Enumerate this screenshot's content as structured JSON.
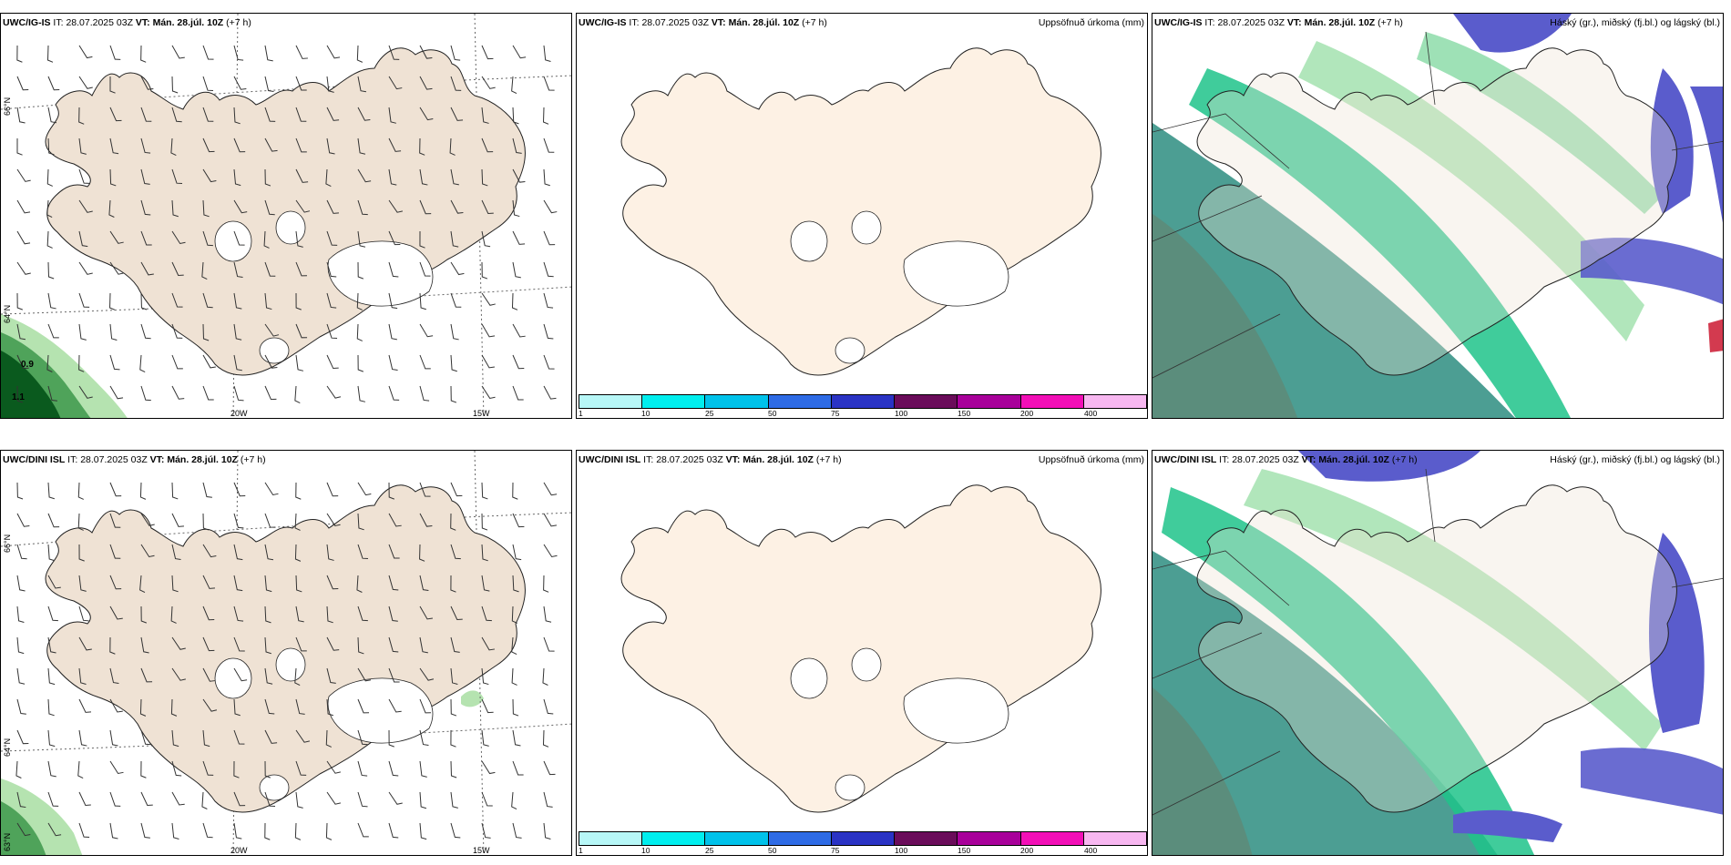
{
  "rows": [
    {
      "model": "UWC/IG-IS",
      "it_label": "IT:",
      "it_value": "28.07.2025 03Z",
      "vt_label": "VT:",
      "vt_value": "Mán. 28.júl. 10Z",
      "lead": "(+7 h)"
    },
    {
      "model": "UWC/DINI ISL",
      "it_label": "IT:",
      "it_value": "28.07.2025 03Z",
      "vt_label": "VT:",
      "vt_value": "Mán. 28.júl. 10Z",
      "lead": "(+7 h)"
    }
  ],
  "precip_title": "Uppsöfnuð úrkoma (mm)",
  "cloud_title": "Háský (gr.), miðský (fj.bl.) og lágský (bl.)",
  "wind_axis": {
    "lat_66": "66°N",
    "lat_64": "64°N",
    "lon_20": "20W",
    "lon_15": "15W"
  },
  "wind_values": {
    "top_a": "0.9",
    "top_b": "1.1",
    "bottom_lat": "63°N"
  },
  "precip_colorbar": {
    "colors": [
      "#b7f7f7",
      "#00eeee",
      "#00c2ea",
      "#2e6be5",
      "#2a33c4",
      "#6a0c5a",
      "#a8009a",
      "#f20fb7",
      "#f7b7f0"
    ],
    "ticks": [
      "1",
      "10",
      "25",
      "50",
      "75",
      "100",
      "150",
      "200",
      "400"
    ]
  },
  "colors": {
    "land_wind": "#efe2d4",
    "land_precip": "#fdf1e4",
    "green_dark": "#0a5a1e",
    "green_mid": "#4fa35a",
    "green_light": "#b5e3b0",
    "cloud_high": "#4c9e93",
    "cloud_mid": "#1fc38a",
    "cloud_low": "#5a5ccc"
  }
}
